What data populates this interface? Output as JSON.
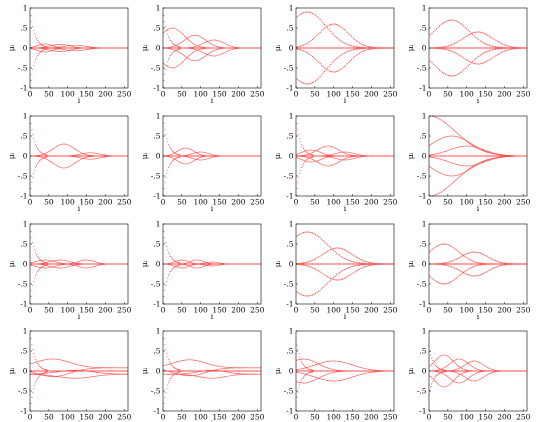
{
  "chart_data": {
    "type": "line",
    "layout": {
      "rows": 4,
      "cols": 4
    },
    "xlabel": "i",
    "ylabel": "μᵢ",
    "xlim": [
      0,
      260
    ],
    "ylim": [
      -1,
      1
    ],
    "xticks": [
      "0",
      "50",
      "100",
      "150",
      "200",
      "250"
    ],
    "yticks": [
      "-1",
      "-.5",
      "0",
      ".5",
      "1"
    ],
    "color": "#ff4d4d",
    "panels": [
      {
        "modes": [
          {
            "c": 40,
            "w": 55,
            "a": 0.1
          },
          {
            "c": 80,
            "w": 70,
            "a": 0.09
          },
          {
            "c": 120,
            "w": 80,
            "a": 0.07
          }
        ],
        "lanes": [
          0,
          0,
          0
        ],
        "edge": 1.0,
        "scatter": false
      },
      {
        "modes": [
          {
            "c": 25,
            "w": 90,
            "a": 0.5
          },
          {
            "c": 85,
            "w": 80,
            "a": 0.32
          },
          {
            "c": 135,
            "w": 75,
            "a": 0.2
          }
        ],
        "lanes": [
          0,
          0,
          0
        ],
        "edge": 1.0,
        "scatter": false
      },
      {
        "modes": [
          {
            "c": 30,
            "w": 140,
            "a": 0.9
          },
          {
            "c": 100,
            "w": 110,
            "a": 0.6
          }
        ],
        "lanes": [
          0,
          0
        ],
        "edge": 0.0,
        "scatter": true
      },
      {
        "modes": [
          {
            "c": 60,
            "w": 130,
            "a": 0.7
          },
          {
            "c": 130,
            "w": 110,
            "a": 0.4
          }
        ],
        "lanes": [
          0,
          0
        ],
        "edge": 0.0,
        "scatter": true
      },
      {
        "modes": [
          {
            "c": 90,
            "w": 80,
            "a": 0.3
          },
          {
            "c": 160,
            "w": 70,
            "a": 0.08
          }
        ],
        "lanes": [
          0,
          0
        ],
        "edge": 1.0,
        "scatter": false
      },
      {
        "modes": [
          {
            "c": 60,
            "w": 60,
            "a": 0.2
          },
          {
            "c": 100,
            "w": 60,
            "a": 0.1
          }
        ],
        "lanes": [
          0,
          0
        ],
        "edge": 1.0,
        "scatter": false
      },
      {
        "modes": [
          {
            "c": 40,
            "w": 70,
            "a": 0.15
          },
          {
            "c": 85,
            "w": 80,
            "a": 0.25
          },
          {
            "c": 130,
            "w": 70,
            "a": 0.1
          }
        ],
        "lanes": [
          0,
          0,
          0
        ],
        "edge": 1.0,
        "scatter": false
      },
      {
        "modes": [
          {
            "c": 0,
            "w": 200,
            "a": 1.0
          },
          {
            "c": 60,
            "w": 150,
            "a": 0.5
          },
          {
            "c": 100,
            "w": 130,
            "a": 0.25
          }
        ],
        "lanes": [
          0,
          0,
          0
        ],
        "edge": 0.0,
        "scatter": false
      },
      {
        "modes": [
          {
            "c": 40,
            "w": 70,
            "a": 0.1
          },
          {
            "c": 80,
            "w": 70,
            "a": 0.1
          },
          {
            "c": 150,
            "w": 60,
            "a": 0.1
          }
        ],
        "lanes": [
          0,
          0,
          0
        ],
        "edge": 1.0,
        "scatter": false
      },
      {
        "modes": [
          {
            "c": 50,
            "w": 50,
            "a": 0.1
          },
          {
            "c": 90,
            "w": 50,
            "a": 0.1
          },
          {
            "c": 130,
            "w": 50,
            "a": 0.05
          }
        ],
        "lanes": [
          0,
          0,
          0
        ],
        "edge": 1.0,
        "scatter": false
      },
      {
        "modes": [
          {
            "c": 30,
            "w": 150,
            "a": 0.8
          },
          {
            "c": 110,
            "w": 110,
            "a": 0.4
          }
        ],
        "lanes": [
          0,
          0
        ],
        "edge": 0.0,
        "scatter": true
      },
      {
        "modes": [
          {
            "c": 40,
            "w": 110,
            "a": 0.5
          },
          {
            "c": 120,
            "w": 100,
            "a": 0.3
          }
        ],
        "lanes": [
          0,
          0
        ],
        "edge": 0.0,
        "scatter": true
      },
      {
        "modes": [
          {
            "c": 60,
            "w": 130,
            "a": 0.22
          },
          {
            "c": 120,
            "w": 130,
            "a": 0.1
          }
        ],
        "lanes": [
          0.08,
          -0.08
        ],
        "edge": 1.0,
        "scatter": false
      },
      {
        "modes": [
          {
            "c": 70,
            "w": 120,
            "a": 0.2
          },
          {
            "c": 130,
            "w": 100,
            "a": 0.1
          }
        ],
        "lanes": [
          0.08,
          -0.08
        ],
        "edge": 1.0,
        "scatter": false
      },
      {
        "modes": [
          {
            "c": 20,
            "w": 110,
            "a": 0.3
          },
          {
            "c": 100,
            "w": 140,
            "a": 0.25
          }
        ],
        "lanes": [
          0,
          0
        ],
        "edge": 0.8,
        "scatter": false
      },
      {
        "modes": [
          {
            "c": 40,
            "w": 70,
            "a": 0.4
          },
          {
            "c": 80,
            "w": 70,
            "a": 0.3
          },
          {
            "c": 120,
            "w": 70,
            "a": 0.25
          }
        ],
        "lanes": [
          0,
          0,
          0
        ],
        "edge": 0.6,
        "scatter": false
      }
    ]
  }
}
